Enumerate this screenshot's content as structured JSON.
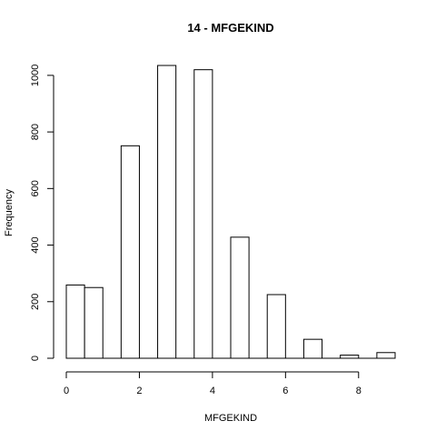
{
  "chart_data": {
    "type": "bar",
    "title": "14 - MFGEKIND",
    "xlabel": "MFGEKIND",
    "ylabel": "Frequency",
    "bins": [
      {
        "x0": 0.0,
        "x1": 0.5,
        "count": 259
      },
      {
        "x0": 0.5,
        "x1": 1.0,
        "count": 250
      },
      {
        "x0": 1.0,
        "x1": 1.5,
        "count": 0
      },
      {
        "x0": 1.5,
        "x1": 2.0,
        "count": 751
      },
      {
        "x0": 2.0,
        "x1": 2.5,
        "count": 0
      },
      {
        "x0": 2.5,
        "x1": 3.0,
        "count": 1035
      },
      {
        "x0": 3.0,
        "x1": 3.5,
        "count": 0
      },
      {
        "x0": 3.5,
        "x1": 4.0,
        "count": 1020
      },
      {
        "x0": 4.0,
        "x1": 4.5,
        "count": 0
      },
      {
        "x0": 4.5,
        "x1": 5.0,
        "count": 428
      },
      {
        "x0": 5.0,
        "x1": 5.5,
        "count": 0
      },
      {
        "x0": 5.5,
        "x1": 6.0,
        "count": 225
      },
      {
        "x0": 6.0,
        "x1": 6.5,
        "count": 0
      },
      {
        "x0": 6.5,
        "x1": 7.0,
        "count": 67
      },
      {
        "x0": 7.0,
        "x1": 7.5,
        "count": 0
      },
      {
        "x0": 7.5,
        "x1": 8.0,
        "count": 11
      },
      {
        "x0": 8.0,
        "x1": 8.5,
        "count": 0
      },
      {
        "x0": 8.5,
        "x1": 9.0,
        "count": 20
      }
    ],
    "xticks": [
      0,
      2,
      4,
      6,
      8
    ],
    "yticks": [
      0,
      200,
      400,
      600,
      800,
      1000
    ],
    "xlim": [
      0,
      9
    ],
    "ylim": [
      0,
      1035
    ],
    "grid": false,
    "legend": "none"
  }
}
